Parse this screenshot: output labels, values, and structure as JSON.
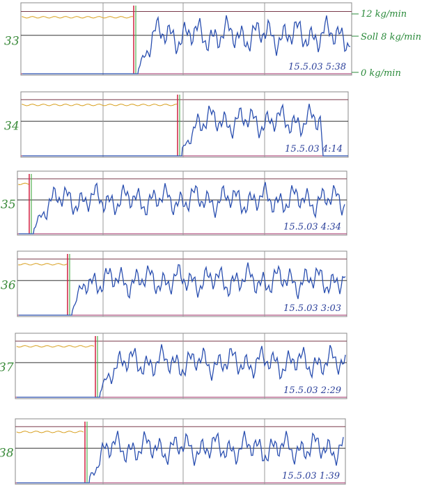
{
  "panels": [
    {
      "label": "33",
      "timestamp": "15.5.03 5:38"
    },
    {
      "label": "34",
      "timestamp": "15.5.03 4:14"
    },
    {
      "label": "35",
      "timestamp": "15.5.03 4:34"
    },
    {
      "label": "36",
      "timestamp": "15.5.03 3:03"
    },
    {
      "label": "37",
      "timestamp": "15.5.03 2:29"
    },
    {
      "label": "38",
      "timestamp": "15.5.03 1:39"
    }
  ],
  "annotations": [
    "12 kg/min",
    "Soll 8 kg/min",
    "0 kg/min"
  ]
}
